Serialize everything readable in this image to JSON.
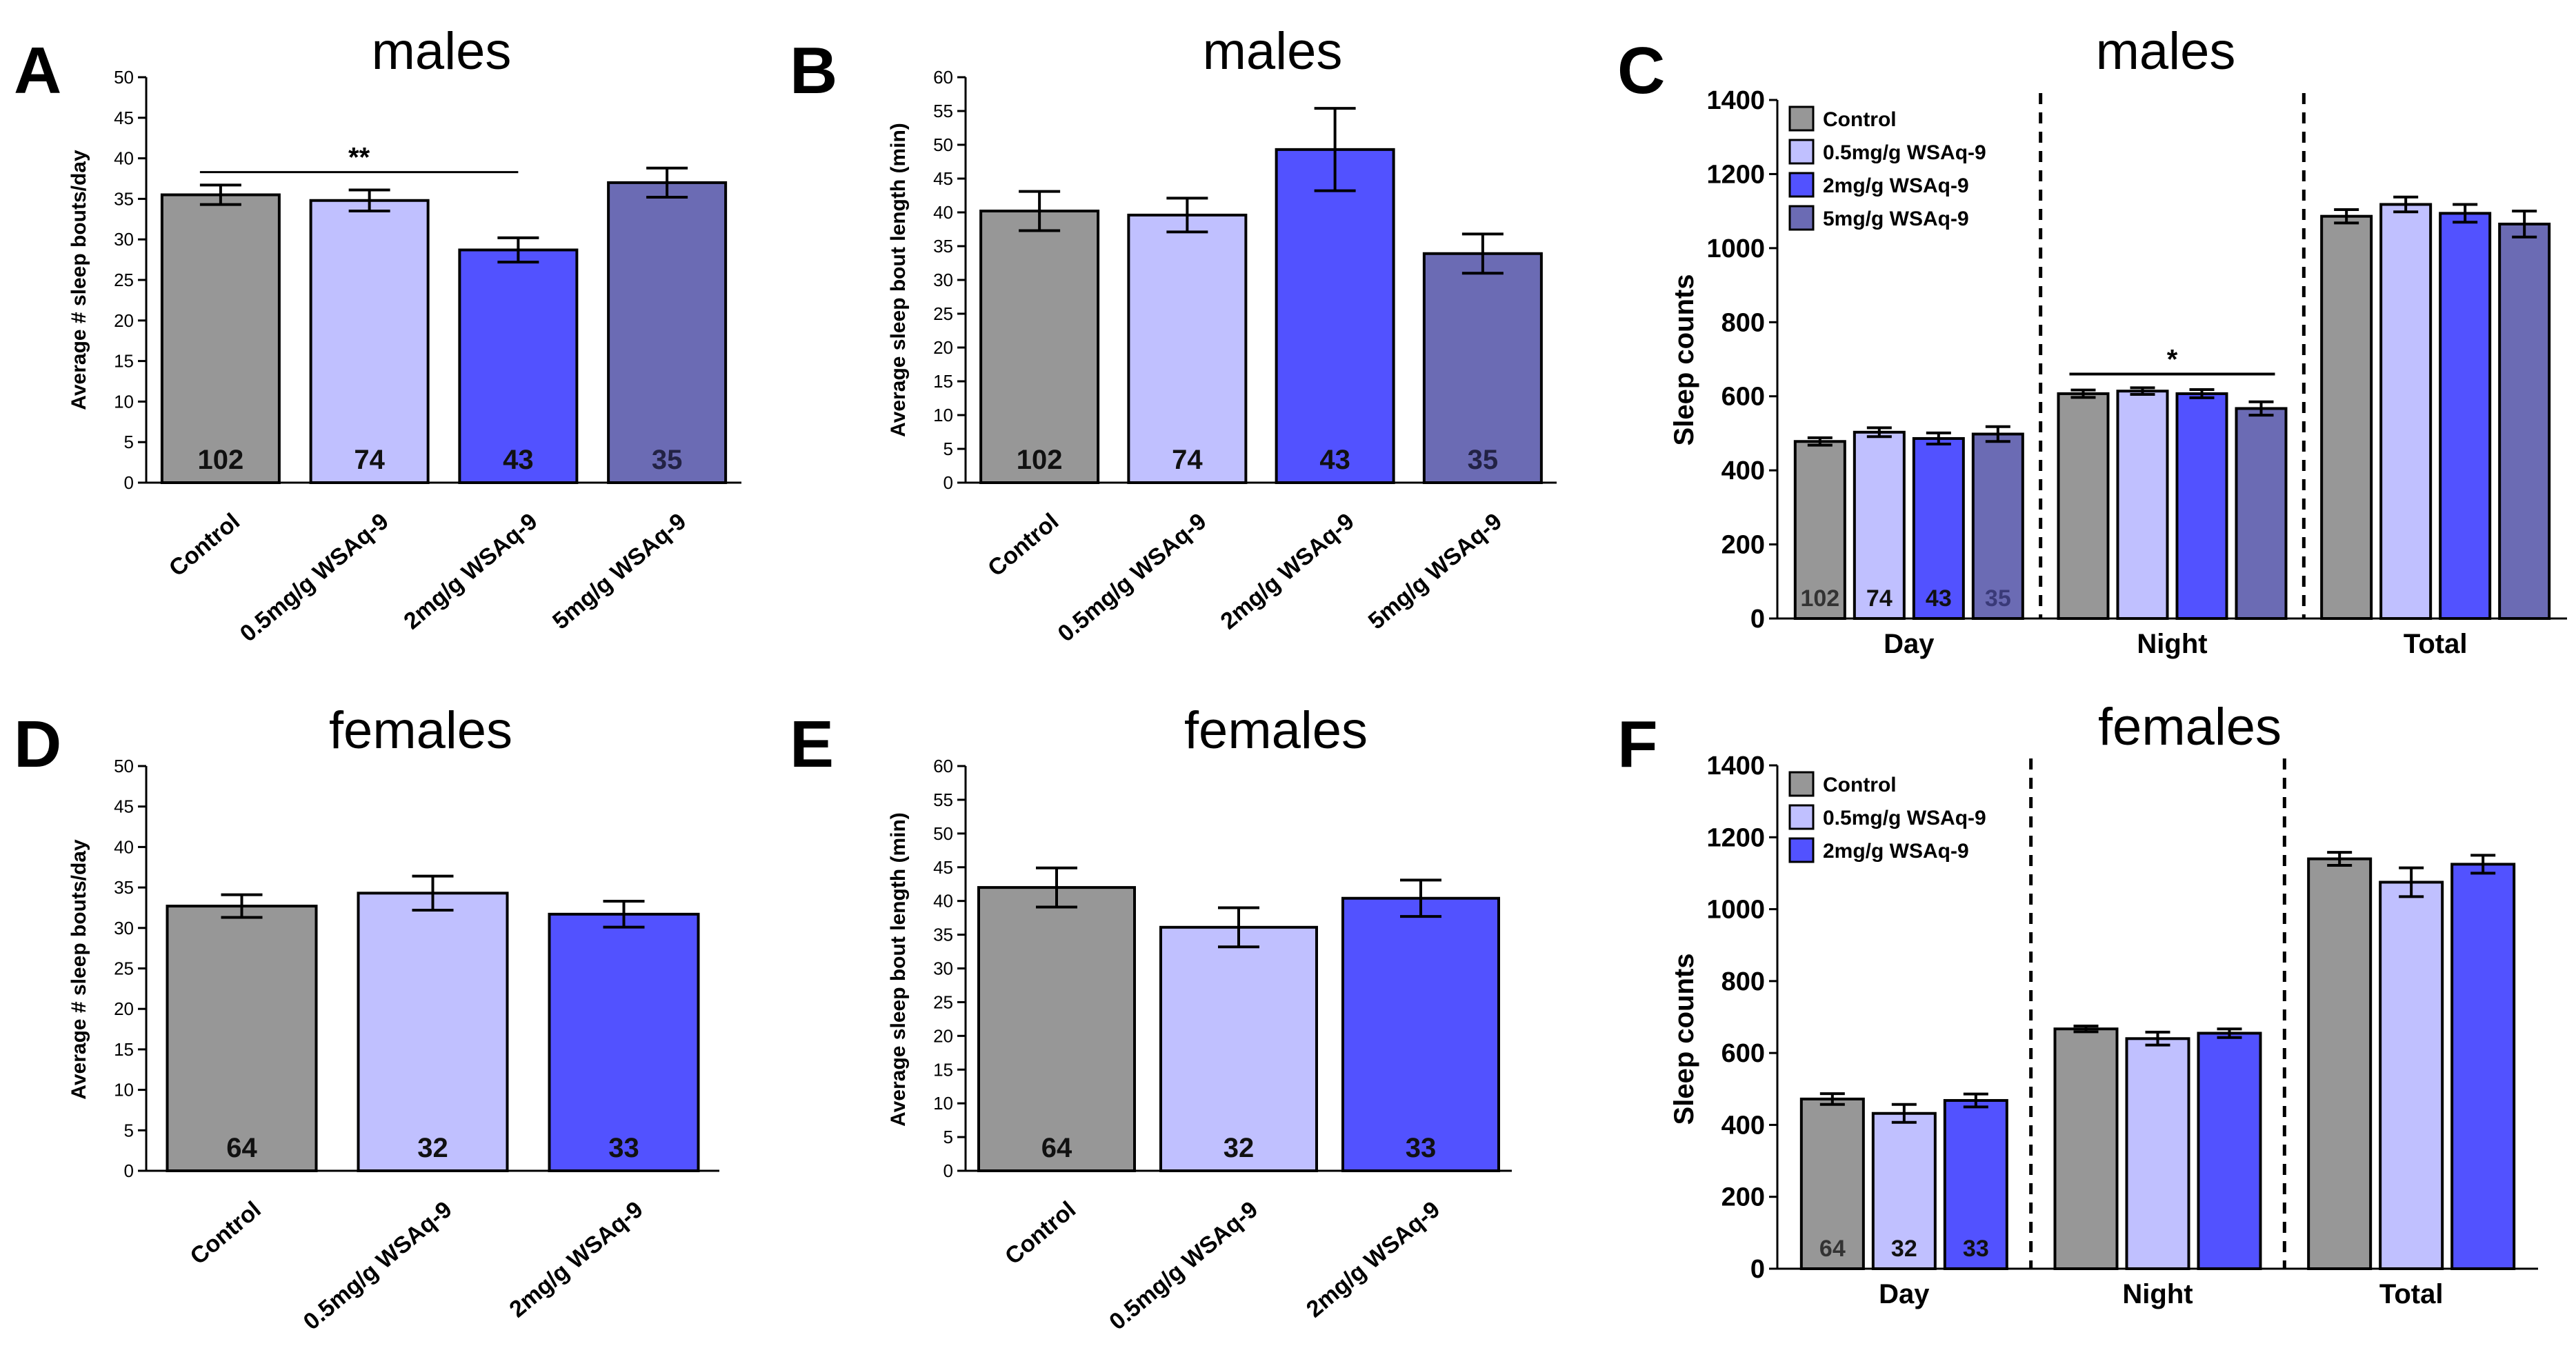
{
  "colors": {
    "control": "#979797",
    "wsaq05": "#c0c0ff",
    "wsaq2": "#5252ff",
    "wsaq5": "#6b6bb4"
  },
  "chart_data": [
    {
      "id": "A",
      "type": "bar",
      "letter": "A",
      "title": "males",
      "ylabel": "Average # sleep bouts/day",
      "ylim": [
        0,
        50
      ],
      "ystep": 5,
      "categories": [
        "Control",
        "0.5mg/g WSAq-9",
        "2mg/g WSAq-9",
        "5mg/g WSAq-9"
      ],
      "values": [
        35.5,
        34.8,
        28.7,
        37.0
      ],
      "errors": [
        1.2,
        1.3,
        1.5,
        1.8
      ],
      "n": [
        "102",
        "74",
        "43",
        "35"
      ],
      "significance": [
        {
          "label": "**",
          "from": 0,
          "to": 2,
          "y": 38.3
        }
      ]
    },
    {
      "id": "B",
      "type": "bar",
      "letter": "B",
      "title": "males",
      "ylabel": "Average sleep bout length (min)",
      "ylim": [
        0,
        60
      ],
      "ystep": 5,
      "categories": [
        "Control",
        "0.5mg/g WSAq-9",
        "2mg/g WSAq-9",
        "5mg/g WSAq-9"
      ],
      "values": [
        40.2,
        39.6,
        49.3,
        33.9
      ],
      "errors": [
        2.9,
        2.5,
        6.1,
        2.9
      ],
      "n": [
        "102",
        "74",
        "43",
        "35"
      ],
      "significance": []
    },
    {
      "id": "C",
      "type": "bar",
      "letter": "C",
      "title": "males",
      "ylabel": "Sleep counts",
      "ylim": [
        0,
        1400
      ],
      "ystep": 200,
      "groups": [
        "Day",
        "Night",
        "Total"
      ],
      "series": [
        {
          "name": "Control",
          "values": [
            478,
            607,
            1086
          ],
          "errors": [
            10,
            10,
            18
          ]
        },
        {
          "name": "0.5mg/g WSAq-9",
          "values": [
            503,
            614,
            1118
          ],
          "errors": [
            12,
            9,
            20
          ]
        },
        {
          "name": "2mg/g WSAq-9",
          "values": [
            486,
            607,
            1094
          ],
          "errors": [
            15,
            11,
            24
          ]
        },
        {
          "name": "5mg/g WSAq-9",
          "values": [
            498,
            567,
            1065
          ],
          "errors": [
            20,
            18,
            35
          ]
        }
      ],
      "n": [
        "102",
        "74",
        "43",
        "35"
      ],
      "significance": [
        {
          "label": "*",
          "group": 1,
          "from": 0,
          "to": 3,
          "y": 660
        }
      ]
    },
    {
      "id": "D",
      "type": "bar",
      "letter": "D",
      "title": "females",
      "ylabel": "Average # sleep bouts/day",
      "ylim": [
        0,
        50
      ],
      "ystep": 5,
      "categories": [
        "Control",
        "0.5mg/g WSAq-9",
        "2mg/g WSAq-9"
      ],
      "values": [
        32.7,
        34.3,
        31.7
      ],
      "errors": [
        1.4,
        2.1,
        1.6
      ],
      "n": [
        "64",
        "32",
        "33"
      ],
      "significance": []
    },
    {
      "id": "E",
      "type": "bar",
      "letter": "E",
      "title": "females",
      "ylabel": "Average sleep bout length (min)",
      "ylim": [
        0,
        60
      ],
      "ystep": 5,
      "categories": [
        "Control",
        "0.5mg/g WSAq-9",
        "2mg/g WSAq-9"
      ],
      "values": [
        42.0,
        36.1,
        40.4
      ],
      "errors": [
        2.9,
        2.9,
        2.7
      ],
      "n": [
        "64",
        "32",
        "33"
      ],
      "significance": []
    },
    {
      "id": "F",
      "type": "bar",
      "letter": "F",
      "title": "females",
      "ylabel": "Sleep counts",
      "ylim": [
        0,
        1400
      ],
      "ystep": 200,
      "groups": [
        "Day",
        "Night",
        "Total"
      ],
      "series": [
        {
          "name": "Control",
          "values": [
            472,
            667,
            1140
          ],
          "errors": [
            15,
            8,
            18
          ]
        },
        {
          "name": "0.5mg/g WSAq-9",
          "values": [
            432,
            640,
            1075
          ],
          "errors": [
            25,
            18,
            40
          ]
        },
        {
          "name": "2mg/g WSAq-9",
          "values": [
            468,
            655,
            1125
          ],
          "errors": [
            18,
            12,
            25
          ]
        }
      ],
      "n": [
        "64",
        "32",
        "33"
      ],
      "significance": []
    }
  ]
}
